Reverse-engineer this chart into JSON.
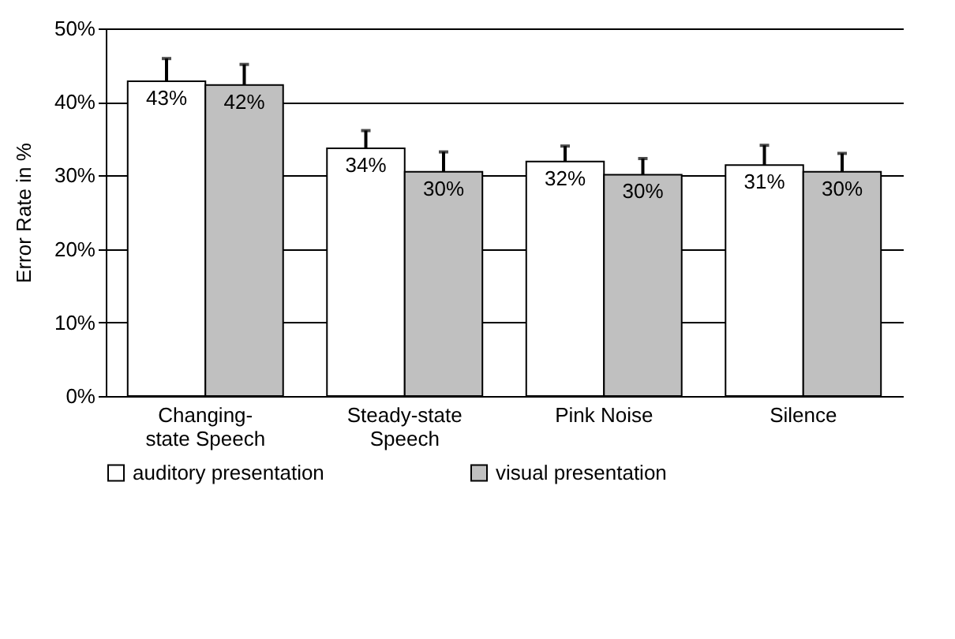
{
  "chart_data": {
    "type": "bar",
    "ylabel": "Error Rate in %",
    "categories": [
      "Changing-state Speech",
      "Steady-state Speech",
      "Pink Noise",
      "Silence"
    ],
    "series": [
      {
        "name": "auditory presentation",
        "color": "#ffffff",
        "values": [
          42.8,
          33.7,
          31.9,
          31.4
        ],
        "errors": [
          3.1,
          2.4,
          2.1,
          2.7
        ],
        "value_labels": [
          "43%",
          "34%",
          "32%",
          "31%"
        ]
      },
      {
        "name": "visual presentation",
        "color": "#c0c0c0",
        "values": [
          42.3,
          30.5,
          30.1,
          30.5
        ],
        "errors": [
          2.8,
          2.7,
          2.2,
          2.5
        ],
        "value_labels": [
          "42%",
          "30%",
          "30%",
          "30%"
        ]
      }
    ],
    "ylim": [
      0,
      50
    ],
    "yticks": [
      {
        "value": 0,
        "label": "0%"
      },
      {
        "value": 10,
        "label": "10%"
      },
      {
        "value": 20,
        "label": "20%"
      },
      {
        "value": 30,
        "label": "30%"
      },
      {
        "value": 40,
        "label": "40%"
      },
      {
        "value": 50,
        "label": "50%"
      }
    ],
    "grid": "y",
    "legend": "bottom"
  }
}
